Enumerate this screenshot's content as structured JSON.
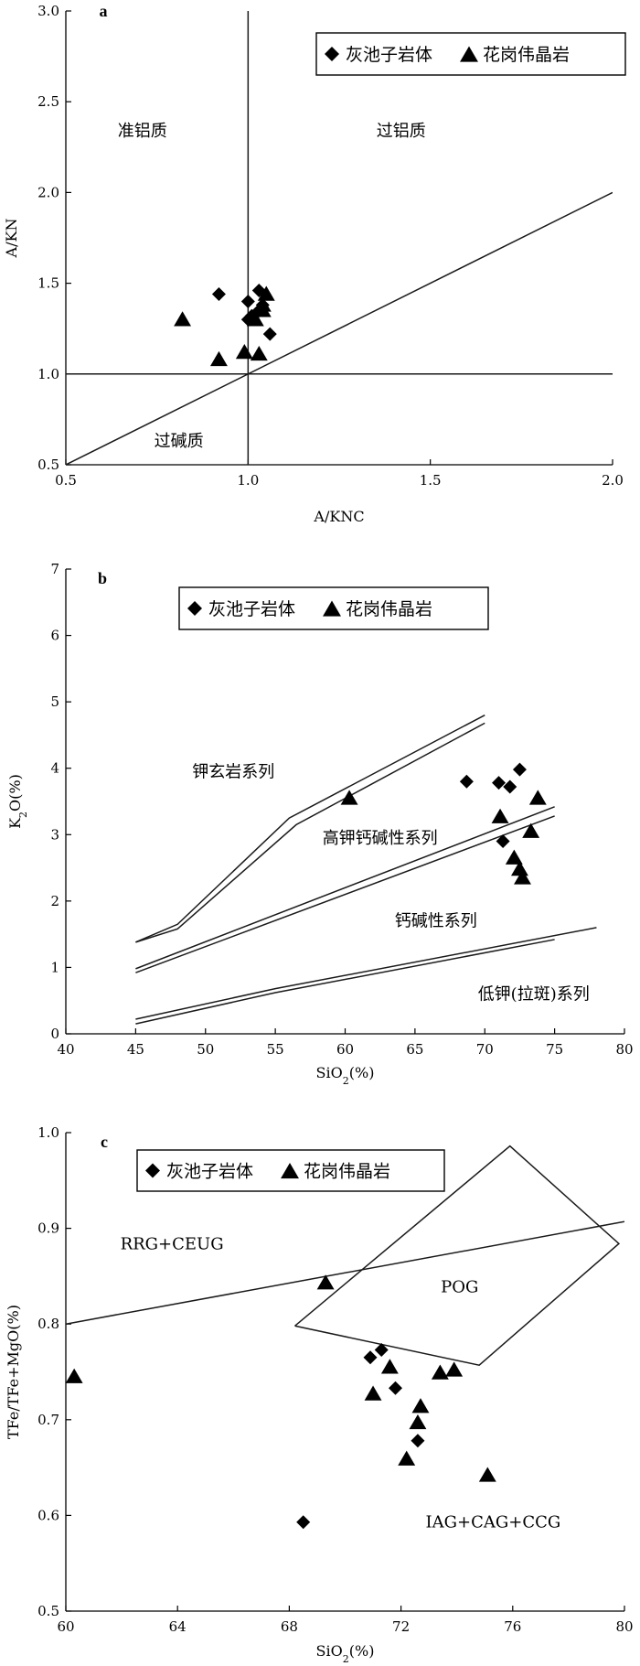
{
  "chart_data": [
    {
      "type": "scatter",
      "panel_label": "a",
      "xlabel": "A/KNC",
      "ylabel": "A/KN",
      "xlim": [
        0.5,
        2.0
      ],
      "ylim": [
        0.5,
        3.0
      ],
      "xticks": [
        "0.5",
        "1.0",
        "1.5",
        "2.0"
      ],
      "yticks": [
        "0.5",
        "1.0",
        "1.5",
        "2.0",
        "2.5",
        "3.0"
      ],
      "legend_position": "top-right",
      "reference_lines": [
        {
          "x": [
            0.5,
            2.0
          ],
          "y": [
            1.0,
            1.0
          ]
        },
        {
          "x": [
            1.0,
            1.0
          ],
          "y": [
            0.5,
            3.0
          ]
        },
        {
          "x": [
            0.5,
            2.0
          ],
          "y": [
            0.5,
            2.0
          ]
        }
      ],
      "regions": [
        {
          "label": "准铝质",
          "x": 0.71,
          "y": 2.34
        },
        {
          "label": "过铝质",
          "x": 1.42,
          "y": 2.34
        },
        {
          "label": "过碱质",
          "x": 0.81,
          "y": 0.63
        }
      ],
      "series": [
        {
          "name": "灰池子岩体",
          "marker": "diamond",
          "x": [
            0.92,
            1.0,
            1.03,
            1.02,
            1.04,
            1.0,
            1.06,
            1.03,
            1.01
          ],
          "y": [
            1.44,
            1.4,
            1.46,
            1.33,
            1.38,
            1.3,
            1.22,
            1.35,
            1.32
          ]
        },
        {
          "name": "花岗伟晶岩",
          "marker": "triangle",
          "x": [
            0.82,
            0.92,
            0.99,
            1.05,
            1.04,
            1.03,
            1.02,
            1.04
          ],
          "y": [
            1.3,
            1.08,
            1.12,
            1.44,
            1.38,
            1.11,
            1.3,
            1.35
          ]
        }
      ]
    },
    {
      "type": "scatter",
      "panel_label": "b",
      "xlabel": "SiO2(%)",
      "ylabel": "K2O(%)",
      "xlim": [
        40,
        80
      ],
      "ylim": [
        0,
        7
      ],
      "xticks": [
        "40",
        "45",
        "50",
        "55",
        "60",
        "65",
        "70",
        "75",
        "80"
      ],
      "yticks": [
        "0",
        "1",
        "2",
        "3",
        "4",
        "5",
        "6",
        "7"
      ],
      "legend_position": "top-left",
      "reference_lines": [
        {
          "x": [
            45,
            48,
            56,
            70
          ],
          "y": [
            1.38,
            1.65,
            3.25,
            4.8
          ]
        },
        {
          "x": [
            45,
            48,
            56.5,
            70
          ],
          "y": [
            1.38,
            1.58,
            3.15,
            4.68
          ]
        },
        {
          "x": [
            45,
            75
          ],
          "y": [
            0.98,
            3.42
          ]
        },
        {
          "x": [
            45,
            75
          ],
          "y": [
            0.92,
            3.28
          ]
        },
        {
          "x": [
            45,
            55,
            78
          ],
          "y": [
            0.22,
            0.68,
            1.6
          ]
        },
        {
          "x": [
            45,
            55,
            75
          ],
          "y": [
            0.15,
            0.62,
            1.42
          ]
        }
      ],
      "regions": [
        {
          "label": "钾玄岩系列",
          "x": 52.0,
          "y": 3.95
        },
        {
          "label": "高钾钙碱性系列",
          "x": 62.5,
          "y": 2.95
        },
        {
          "label": "钙碱性系列",
          "x": 66.5,
          "y": 1.7
        },
        {
          "label": "低钾(拉斑)系列",
          "x": 73.5,
          "y": 0.6
        }
      ],
      "series": [
        {
          "name": "灰池子岩体",
          "marker": "diamond",
          "x": [
            68.7,
            71.0,
            71.8,
            72.5,
            71.3
          ],
          "y": [
            3.8,
            3.78,
            3.72,
            3.98,
            2.9
          ]
        },
        {
          "name": "花岗伟晶岩",
          "marker": "triangle",
          "x": [
            60.3,
            71.1,
            72.1,
            72.5,
            72.7,
            73.3,
            73.8
          ],
          "y": [
            3.55,
            3.27,
            2.65,
            2.48,
            2.35,
            3.05,
            3.55
          ]
        }
      ]
    },
    {
      "type": "scatter",
      "panel_label": "c",
      "xlabel": "SiO2(%)",
      "ylabel": "TFe/TFe+MgO(%)",
      "xlim": [
        60,
        80
      ],
      "ylim": [
        0.5,
        1.0
      ],
      "xticks": [
        "60",
        "64",
        "68",
        "72",
        "76",
        "80"
      ],
      "yticks": [
        "0.5",
        "0.6",
        "0.7",
        "0.8",
        "0.9",
        "1.0"
      ],
      "legend_position": "top-left",
      "reference_lines": [
        {
          "x": [
            60,
            80
          ],
          "y": [
            0.8,
            0.907
          ]
        },
        {
          "x": [
            68.2,
            75.9,
            79.8,
            74.8,
            68.2
          ],
          "y": [
            0.798,
            0.986,
            0.884,
            0.757,
            0.798
          ]
        }
      ],
      "regions": [
        {
          "label": "RRG+CEUG",
          "x": 63.8,
          "y": 0.884
        },
        {
          "label": "POG",
          "x": 74.1,
          "y": 0.839
        },
        {
          "label": "IAG+CAG+CCG",
          "x": 75.3,
          "y": 0.593
        }
      ],
      "series": [
        {
          "name": "灰池子岩体",
          "marker": "diamond",
          "x": [
            70.9,
            71.3,
            71.8,
            72.6,
            68.5
          ],
          "y": [
            0.765,
            0.773,
            0.733,
            0.678,
            0.593
          ]
        },
        {
          "name": "花岗伟晶岩",
          "marker": "triangle",
          "x": [
            60.3,
            69.3,
            71.0,
            71.6,
            72.2,
            72.6,
            72.7,
            73.4,
            73.9,
            75.1
          ],
          "y": [
            0.745,
            0.843,
            0.727,
            0.755,
            0.659,
            0.697,
            0.714,
            0.749,
            0.752,
            0.642
          ]
        }
      ]
    }
  ]
}
